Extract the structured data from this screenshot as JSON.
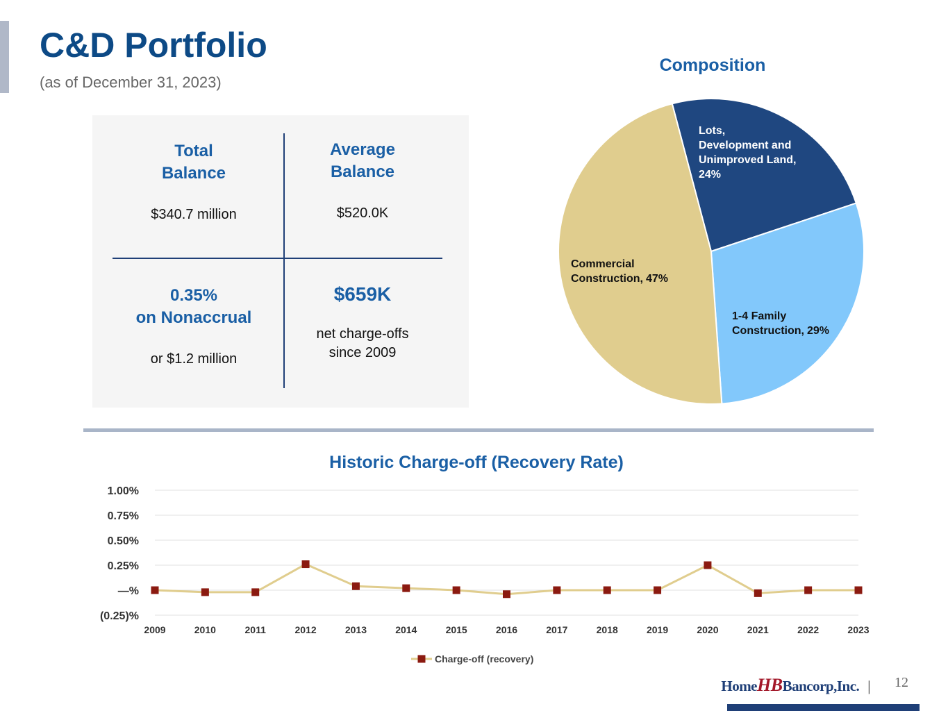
{
  "header": {
    "title": "C&D Portfolio",
    "subtitle": "(as of December 31, 2023)"
  },
  "stats": [
    {
      "heading": "Total\nBalance",
      "text": "$340.7 million"
    },
    {
      "heading": "Average\nBalance",
      "text": "$520.0K"
    },
    {
      "heading": "0.35%\non Nonaccrual",
      "text": "or $1.2 million"
    },
    {
      "heading": "$659K",
      "text": "net charge-offs\nsince 2009"
    }
  ],
  "chart_data": [
    {
      "type": "pie",
      "title": "Composition",
      "categories": [
        "Lots,\nDevelopment and\nUnimproved Land,",
        "1-4 Family\nConstruction,",
        "Commercial\nConstruction,"
      ],
      "values": [
        24,
        29,
        47
      ],
      "value_labels": [
        "24%",
        "29%",
        "47%"
      ],
      "colors": [
        "#1f4780",
        "#82c8fb",
        "#e0cd8e"
      ]
    },
    {
      "type": "line",
      "title": "Historic Charge-off (Recovery Rate)",
      "categories": [
        "2009",
        "2010",
        "2011",
        "2012",
        "2013",
        "2014",
        "2015",
        "2016",
        "2017",
        "2018",
        "2019",
        "2020",
        "2021",
        "2022",
        "2023"
      ],
      "series": [
        {
          "name": "Charge-off (recovery)",
          "color": "#e0cd8e",
          "marker_color": "#8b1a10",
          "values": [
            0.0,
            -0.02,
            -0.02,
            0.26,
            0.04,
            0.02,
            0.0,
            -0.04,
            0.0,
            0.0,
            0.0,
            0.25,
            -0.03,
            0.0,
            0.0
          ]
        }
      ],
      "ylim": [
        -0.25,
        1.0
      ],
      "yticks": [
        {
          "value": -0.25,
          "label": "(0.25)%"
        },
        {
          "value": 0,
          "label": "—%"
        },
        {
          "value": 0.25,
          "label": "0.25%"
        },
        {
          "value": 0.5,
          "label": "0.50%"
        },
        {
          "value": 0.75,
          "label": "0.75%"
        },
        {
          "value": 1.0,
          "label": "1.00%"
        }
      ],
      "grid": true,
      "legend": "bottom"
    }
  ],
  "footer": {
    "logo_left": "Home",
    "logo_mark": "HB",
    "logo_right": "Bancorp,Inc.",
    "separator": "|",
    "page": "12"
  }
}
